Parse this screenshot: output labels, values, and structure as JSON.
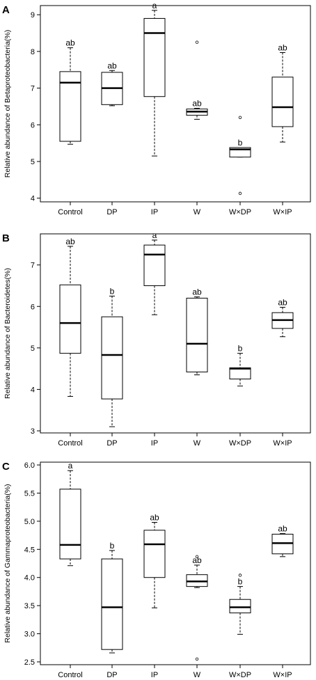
{
  "chart_data": [
    {
      "type": "box",
      "panel_label": "A",
      "ylabel": "Relative abundance of Betaproteobacteria(%)",
      "categories": [
        "Control",
        "DP",
        "IP",
        "W",
        "W×DP",
        "W×IP"
      ],
      "ylim": [
        3.9,
        9.25
      ],
      "yticks": [
        4,
        5,
        6,
        7,
        8,
        9
      ],
      "boxes": [
        {
          "min": 5.47,
          "q1": 5.55,
          "median": 7.15,
          "q3": 7.45,
          "max": 8.1,
          "outliers": [],
          "letter": "ab"
        },
        {
          "min": 6.52,
          "q1": 6.55,
          "median": 7.0,
          "q3": 7.43,
          "max": 7.48,
          "outliers": [],
          "letter": "ab"
        },
        {
          "min": 5.15,
          "q1": 6.77,
          "median": 8.5,
          "q3": 8.9,
          "max": 9.12,
          "outliers": [],
          "letter": "a"
        },
        {
          "min": 6.15,
          "q1": 6.26,
          "median": 6.36,
          "q3": 6.43,
          "max": 6.45,
          "outliers": [
            8.25
          ],
          "letter": "ab"
        },
        {
          "min": 5.12,
          "q1": 5.12,
          "median": 5.33,
          "q3": 5.38,
          "max": 5.38,
          "outliers": [
            6.2,
            4.13
          ],
          "letter": "b"
        },
        {
          "min": 5.53,
          "q1": 5.95,
          "median": 6.48,
          "q3": 7.3,
          "max": 7.97,
          "outliers": [],
          "letter": "ab"
        }
      ]
    },
    {
      "type": "box",
      "panel_label": "B",
      "ylabel": "Relative abundance of Bacteroidetes(%)",
      "categories": [
        "Control",
        "DP",
        "IP",
        "W",
        "W×DP",
        "W×IP"
      ],
      "ylim": [
        2.95,
        7.75
      ],
      "yticks": [
        3,
        4,
        5,
        6,
        7
      ],
      "boxes": [
        {
          "min": 3.83,
          "q1": 4.87,
          "median": 5.6,
          "q3": 6.52,
          "max": 7.45,
          "outliers": [],
          "letter": "ab"
        },
        {
          "min": 3.1,
          "q1": 3.77,
          "median": 4.83,
          "q3": 5.75,
          "max": 6.25,
          "outliers": [],
          "letter": "b"
        },
        {
          "min": 5.8,
          "q1": 6.5,
          "median": 7.25,
          "q3": 7.48,
          "max": 7.6,
          "outliers": [],
          "letter": "a"
        },
        {
          "min": 4.35,
          "q1": 4.42,
          "median": 5.1,
          "q3": 6.2,
          "max": 6.23,
          "outliers": [],
          "letter": "ab"
        },
        {
          "min": 4.08,
          "q1": 4.25,
          "median": 4.5,
          "q3": 4.52,
          "max": 4.87,
          "outliers": [],
          "letter": "b"
        },
        {
          "min": 5.27,
          "q1": 5.47,
          "median": 5.67,
          "q3": 5.85,
          "max": 5.98,
          "outliers": [],
          "letter": "ab"
        }
      ]
    },
    {
      "type": "box",
      "panel_label": "C",
      "ylabel": "Relative abundance of Gammaproteobacteria(%)",
      "categories": [
        "Control",
        "DP",
        "IP",
        "W",
        "W×DP",
        "W×IP"
      ],
      "ylim": [
        2.45,
        6.05
      ],
      "yticks": [
        2.5,
        3.0,
        3.5,
        4.0,
        4.5,
        5.0,
        5.5,
        6.0
      ],
      "boxes": [
        {
          "min": 4.21,
          "q1": 4.33,
          "median": 4.58,
          "q3": 5.57,
          "max": 5.9,
          "outliers": [],
          "letter": "a"
        },
        {
          "min": 2.66,
          "q1": 2.72,
          "median": 3.47,
          "q3": 4.33,
          "max": 4.48,
          "outliers": [],
          "letter": "b"
        },
        {
          "min": 3.46,
          "q1": 4.0,
          "median": 4.59,
          "q3": 4.84,
          "max": 4.98,
          "outliers": [],
          "letter": "ab"
        },
        {
          "min": 3.82,
          "q1": 3.84,
          "median": 3.93,
          "q3": 4.05,
          "max": 4.22,
          "outliers": [
            4.37,
            2.55
          ],
          "letter": "ab"
        },
        {
          "min": 2.99,
          "q1": 3.37,
          "median": 3.47,
          "q3": 3.61,
          "max": 3.84,
          "outliers": [
            4.04
          ],
          "letter": "b"
        },
        {
          "min": 4.37,
          "q1": 4.42,
          "median": 4.61,
          "q3": 4.77,
          "max": 4.78,
          "outliers": [],
          "letter": "ab"
        }
      ]
    }
  ]
}
